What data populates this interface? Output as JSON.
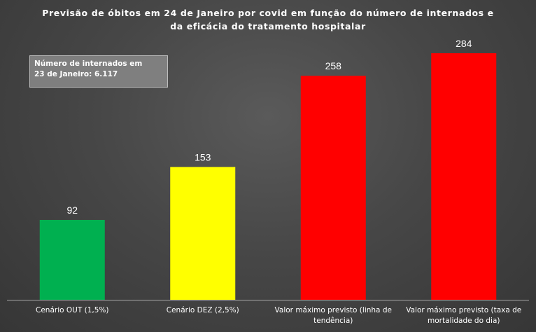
{
  "chart_data": {
    "type": "bar",
    "title_lines": [
      "Previsão de óbitos em 24 de Janeiro por covid em função do número de internados e",
      "da eficácia do tratamento hospitalar"
    ],
    "annotation_lines": [
      "Número de internados em",
      "23 de Janeiro:  6.117"
    ],
    "categories": [
      "Cenário OUT (1,5%)",
      "Cenário DEZ (2,5%)",
      "Valor máximo previsto (linha de tendência)",
      "Valor máximo previsto (taxa de mortalidade do dia)"
    ],
    "category_label_lines": [
      [
        "Cenário OUT (1,5%)"
      ],
      [
        "Cenário DEZ (2,5%)"
      ],
      [
        "Valor máximo previsto (linha de",
        "tendência)"
      ],
      [
        "Valor máximo previsto (taxa de",
        "mortalidade do dia)"
      ]
    ],
    "values": [
      92,
      153,
      258,
      284
    ],
    "colors": [
      "#00b050",
      "#ffff00",
      "#ff0000",
      "#ff0000"
    ],
    "ylim": [
      0,
      284
    ],
    "grid": false,
    "legend": "none",
    "xlabel": "",
    "ylabel": ""
  }
}
